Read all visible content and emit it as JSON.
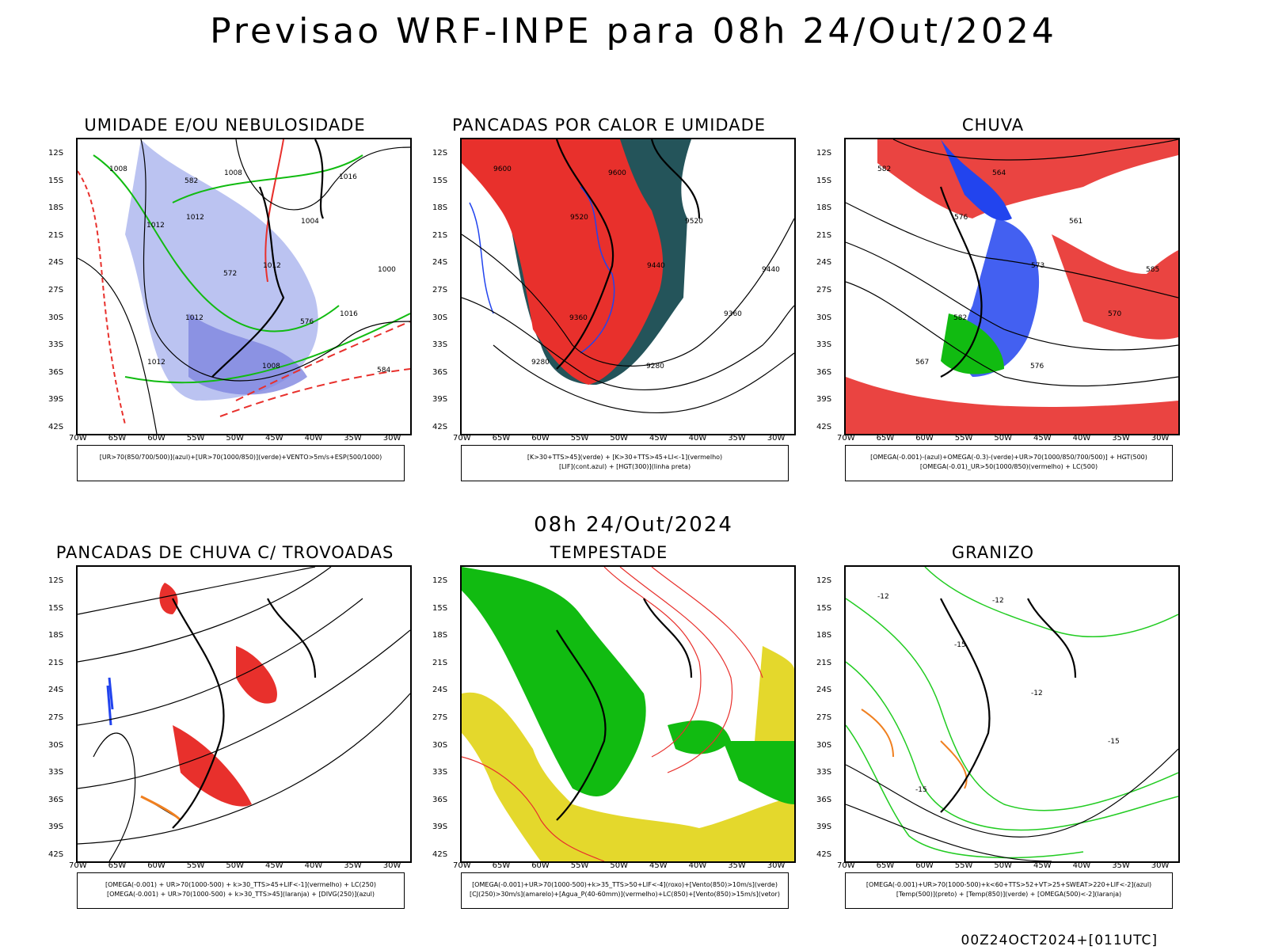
{
  "title": "Previsao WRF-INPE  para 08h 24/Out/2024",
  "subtitle": "08h 24/Out/2024",
  "footer": "00Z24OCT2024+[011UTC]",
  "lat_labels": [
    "12S",
    "15S",
    "18S",
    "21S",
    "24S",
    "27S",
    "30S",
    "33S",
    "36S",
    "39S",
    "42S"
  ],
  "lon_labels": [
    "70W",
    "65W",
    "60W",
    "55W",
    "50W",
    "45W",
    "40W",
    "35W",
    "30W"
  ],
  "colors": {
    "red": "#e8302c",
    "blue": "#2244ee",
    "green": "#11bb11",
    "lightblue": "#aab4ee",
    "darkteal": "#24545a",
    "yellow": "#e4d82c",
    "orange": "#f08020",
    "lightgreen": "#22cc22"
  },
  "panels": [
    {
      "id": "umidade",
      "title": "UMIDADE E/OU NEBULOSIDADE",
      "legend": [
        "[UR>70(850/700/500)](azul)+[UR>70(1000/850)](verde)+VENTO>5m/s+ESP(500/1000)"
      ],
      "contour_labels": [
        "1008",
        "1012",
        "1012",
        "1016",
        "1012",
        "1008",
        "1004",
        "1000",
        "1012",
        "1008",
        "1016",
        "1012",
        "572",
        "576",
        "584",
        "582"
      ]
    },
    {
      "id": "pancadas_calor",
      "title": "PANCADAS POR CALOR E UMIDADE",
      "legend": [
        "[K>30+TTS>45](verde)  +  [K>30+TTS>45+LI<-1](vermelho)",
        "[LIF](cont.azul)  +  [HGT(300)](linha preta)"
      ],
      "contour_labels": [
        "9600",
        "9520",
        "9440",
        "9360",
        "9280",
        "9600",
        "9520",
        "9440",
        "9360",
        "9280"
      ]
    },
    {
      "id": "chuva",
      "title": "CHUVA",
      "legend": [
        "[OMEGA(-0.001)-(azul)+OMEGA(-0.3)-(verde)+UR>70(1000/850/700/500)]  +  HGT(500)",
        "[OMEGA(-0.01)_UR>50(1000/850)(vermelho)  +  LC(500)"
      ],
      "contour_labels": [
        "582",
        "576",
        "573",
        "570",
        "567",
        "564",
        "561",
        "585",
        "582",
        "576"
      ]
    },
    {
      "id": "trovoadas",
      "title": "PANCADAS DE CHUVA C/ TROVOADAS",
      "legend": [
        "[OMEGA(-0.001)  +  UR>70(1000-500)  +  k>30_TTS>45+LIF<-1](vermelho)  +  LC(250)",
        "[OMEGA(-0.001)  +  UR>70(1000-500)  +  k>30_TTS>45](laranja)  +  [DIVG(250)](azul)"
      ],
      "contour_labels": []
    },
    {
      "id": "tempestade",
      "title": "TEMPESTADE",
      "legend": [
        "[OMEGA(-0.001)+UR>70(1000-500)+k>35_TTS>50+LIF<-4](roxo)+[Vento(850)>10m/s](verde)",
        "[CJ(250)>30m/s](amarelo)+[Agua_P(40-60mm)](vermelho)+LC(850)+[Vento(850)>15m/s](vetor)"
      ],
      "contour_labels": []
    },
    {
      "id": "granizo",
      "title": "GRANIZO",
      "legend": [
        "[OMEGA(-0.001)+UR>70(1000-500)+k<60+TTS>52+VT>25+SWEAT>220+LIF<-2](azul)",
        "[Temp(500)](preto)  +  [Temp(850)](verde)  +  [OMEGA(500)<-2](laranja)"
      ],
      "contour_labels": [
        "-12",
        "-15",
        "-12",
        "-15",
        "-15",
        "-12"
      ]
    }
  ]
}
